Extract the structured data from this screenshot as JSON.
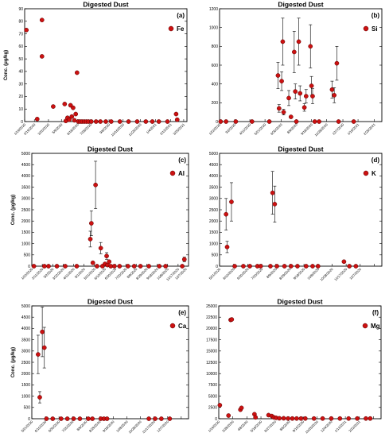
{
  "figure": {
    "ylabel": "Conc. (μg/kg)"
  },
  "chart_data": [
    {
      "type": "scatter",
      "title": "Digested Dust",
      "panel_label": "(a)",
      "series": [
        {
          "name": "Fe",
          "color": "#cc1111"
        }
      ],
      "ylabel": "Conc. (μg/kg)",
      "ylim": [
        0,
        90
      ],
      "yticks": [
        0,
        10,
        20,
        30,
        40,
        50,
        60,
        70,
        80,
        90
      ],
      "xlim": [
        0,
        750
      ],
      "xtick_pos": [
        0,
        45,
        110,
        170,
        245,
        305,
        390,
        455,
        535,
        605,
        675,
        735
      ],
      "xtick_labels": [
        "1/19/2020",
        "2/19/2020",
        "3/20/2020",
        "5/9/2020",
        "6/18/2020",
        "7/28/2020",
        "9/6/2020",
        "10/16/2020",
        "11/25/2020",
        "1/4/2021",
        "2/13/2021",
        "3/25/2021"
      ],
      "points": [
        [
          8,
          73,
          0
        ],
        [
          58,
          2,
          0
        ],
        [
          80,
          81,
          0
        ],
        [
          80,
          52,
          0
        ],
        [
          132,
          12,
          0
        ],
        [
          185,
          14,
          0
        ],
        [
          190,
          0.5,
          0
        ],
        [
          198,
          3,
          0
        ],
        [
          206,
          1.5,
          0
        ],
        [
          212,
          13,
          0
        ],
        [
          218,
          4,
          0
        ],
        [
          224,
          11,
          0
        ],
        [
          230,
          1,
          0
        ],
        [
          236,
          6,
          0
        ],
        [
          242,
          39,
          0
        ],
        [
          248,
          0,
          0
        ],
        [
          256,
          0,
          0
        ],
        [
          265,
          0,
          0
        ],
        [
          275,
          0,
          0
        ],
        [
          285,
          0,
          0
        ],
        [
          295,
          0,
          0
        ],
        [
          308,
          0,
          0
        ],
        [
          330,
          0,
          0
        ],
        [
          350,
          0,
          0
        ],
        [
          375,
          0,
          0
        ],
        [
          400,
          0,
          0
        ],
        [
          440,
          0,
          0
        ],
        [
          480,
          0,
          0
        ],
        [
          520,
          0,
          0
        ],
        [
          560,
          0,
          0
        ],
        [
          590,
          0,
          0
        ],
        [
          620,
          0,
          0
        ],
        [
          660,
          0,
          0
        ],
        [
          700,
          6,
          0
        ],
        [
          705,
          1.5,
          0
        ]
      ]
    },
    {
      "type": "scatter",
      "title": "Digested Dust",
      "panel_label": "(b)",
      "series": [
        {
          "name": "Si",
          "color": "#cc1111"
        }
      ],
      "ylabel": "",
      "ylim": [
        0,
        1200
      ],
      "yticks": [
        0,
        200,
        400,
        600,
        800,
        1000,
        1200
      ],
      "xlim": [
        0,
        750
      ],
      "xtick_pos": [
        0,
        70,
        140,
        210,
        285,
        355,
        425,
        495,
        570,
        640,
        715
      ],
      "xtick_labels": [
        "1/22/2020",
        "3/2/2020",
        "4/11/2020",
        "5/21/2020",
        "6/30/2020",
        "8/9/2020",
        "9/18/2020",
        "10/28/2020",
        "12/7/2020",
        "1/16/2021",
        "2/25/2021"
      ],
      "points": [
        [
          5,
          0,
          0
        ],
        [
          30,
          0,
          0
        ],
        [
          75,
          0,
          0
        ],
        [
          150,
          0,
          0
        ],
        [
          230,
          0,
          0
        ],
        [
          270,
          490,
          140
        ],
        [
          275,
          140,
          40
        ],
        [
          287,
          430,
          100
        ],
        [
          292,
          850,
          250
        ],
        [
          296,
          100,
          30
        ],
        [
          320,
          250,
          80
        ],
        [
          330,
          50,
          0
        ],
        [
          345,
          740,
          220
        ],
        [
          350,
          320,
          80
        ],
        [
          355,
          0,
          0
        ],
        [
          366,
          850,
          250
        ],
        [
          372,
          300,
          80
        ],
        [
          392,
          150,
          40
        ],
        [
          400,
          270,
          70
        ],
        [
          420,
          800,
          230
        ],
        [
          425,
          380,
          100
        ],
        [
          430,
          270,
          80
        ],
        [
          440,
          0,
          0
        ],
        [
          460,
          0,
          0
        ],
        [
          520,
          340,
          90
        ],
        [
          530,
          280,
          80
        ],
        [
          542,
          620,
          180
        ],
        [
          550,
          0,
          0
        ],
        [
          620,
          0,
          0
        ]
      ]
    },
    {
      "type": "scatter",
      "title": "Digested Dust",
      "panel_label": "(c)",
      "series": [
        {
          "name": "Al",
          "color": "#cc1111"
        }
      ],
      "ylabel": "Conc. (μg/kg)",
      "ylim": [
        0,
        5000
      ],
      "yticks": [
        0,
        500,
        1000,
        1500,
        2000,
        2500,
        3000,
        3500,
        4000,
        4500,
        5000
      ],
      "xlim": [
        0,
        750
      ],
      "xtick_pos": [
        0,
        50,
        100,
        150,
        200,
        250,
        300,
        350,
        400,
        450,
        500,
        550,
        600,
        650,
        700
      ],
      "xtick_labels": [
        "1/22/2020",
        "2/11/2020",
        "3/2/2020",
        "3/22/2020",
        "4/11/2020",
        "5/1/2020",
        "5/21/2020",
        "6/10/2020",
        "6/30/2020",
        "7/20/2020",
        "8/9/2020",
        "8/29/2020",
        "9/18/2020",
        "10/8/2020",
        "11/17/2020"
      ],
      "xtick_extra": [
        "12/7/2020"
      ],
      "points": [
        [
          10,
          0,
          0
        ],
        [
          60,
          0,
          0
        ],
        [
          80,
          0,
          0
        ],
        [
          120,
          0,
          0
        ],
        [
          160,
          0,
          0
        ],
        [
          215,
          0,
          0
        ],
        [
          280,
          1200,
          350
        ],
        [
          285,
          1900,
          550
        ],
        [
          292,
          150,
          0
        ],
        [
          305,
          3600,
          1050
        ],
        [
          312,
          0,
          0
        ],
        [
          330,
          800,
          250
        ],
        [
          338,
          0,
          0
        ],
        [
          350,
          100,
          0
        ],
        [
          358,
          450,
          150
        ],
        [
          362,
          50,
          0
        ],
        [
          370,
          200,
          0
        ],
        [
          378,
          0,
          0
        ],
        [
          395,
          0,
          0
        ],
        [
          420,
          0,
          0
        ],
        [
          460,
          0,
          0
        ],
        [
          490,
          0,
          0
        ],
        [
          520,
          0,
          0
        ],
        [
          560,
          0,
          0
        ],
        [
          610,
          0,
          0
        ],
        [
          640,
          0,
          0
        ],
        [
          720,
          0,
          0
        ],
        [
          730,
          300,
          100
        ]
      ]
    },
    {
      "type": "scatter",
      "title": "Digested Dust",
      "panel_label": "(d)",
      "series": [
        {
          "name": "K",
          "color": "#cc1111"
        }
      ],
      "ylabel": "",
      "ylim": [
        0,
        5000
      ],
      "yticks": [
        0,
        500,
        1000,
        1500,
        2000,
        2500,
        3000,
        3500,
        4000,
        4500,
        5000
      ],
      "xlim": [
        0,
        750
      ],
      "xtick_pos": [
        0,
        65,
        130,
        195,
        260,
        325,
        390,
        455,
        520,
        585,
        650,
        715
      ],
      "xtick_labels": [
        "5/21/2020",
        "6/10/2020",
        "6/30/2020",
        "7/20/2020",
        "8/9/2020",
        "8/29/2020",
        "9/18/2020",
        "10/8/2020",
        "10/28/2020",
        "11/17/2020",
        "12/7/2020",
        ""
      ],
      "points": [
        [
          30,
          2300,
          700
        ],
        [
          35,
          850,
          250
        ],
        [
          55,
          2850,
          850
        ],
        [
          70,
          0,
          0
        ],
        [
          110,
          0,
          0
        ],
        [
          140,
          0,
          0
        ],
        [
          175,
          0,
          0
        ],
        [
          190,
          0,
          0
        ],
        [
          235,
          0,
          0
        ],
        [
          245,
          3250,
          950
        ],
        [
          255,
          2750,
          800
        ],
        [
          265,
          0,
          0
        ],
        [
          300,
          0,
          0
        ],
        [
          330,
          0,
          0
        ],
        [
          360,
          0,
          0
        ],
        [
          400,
          0,
          0
        ],
        [
          430,
          0,
          0
        ],
        [
          455,
          0,
          0
        ],
        [
          575,
          200,
          0
        ],
        [
          600,
          0,
          0
        ],
        [
          630,
          0,
          0
        ]
      ]
    },
    {
      "type": "scatter",
      "title": "Digested Dust",
      "panel_label": "(e)",
      "series": [
        {
          "name": "Ca",
          "color": "#cc1111"
        }
      ],
      "ylabel": "Conc. (μg/kg)",
      "ylim": [
        0,
        5000
      ],
      "yticks": [
        0,
        500,
        1000,
        1500,
        2000,
        2500,
        3000,
        3500,
        4000,
        4500,
        5000
      ],
      "xlim": [
        0,
        750
      ],
      "xtick_pos": [
        0,
        65,
        130,
        195,
        260,
        325,
        390,
        455,
        520,
        585,
        650,
        715
      ],
      "xtick_labels": [
        "5/21/2020",
        "6/10/2020",
        "6/30/2020",
        "7/20/2020",
        "8/9/2020",
        "8/29/2020",
        "9/18/2020",
        "10/8/2020",
        "10/28/2020",
        "11/17/2020",
        "12/7/2020",
        ""
      ],
      "points": [
        [
          30,
          2850,
          850
        ],
        [
          38,
          950,
          250
        ],
        [
          50,
          3850,
          1100
        ],
        [
          60,
          3150,
          900
        ],
        [
          70,
          0,
          0
        ],
        [
          100,
          0,
          0
        ],
        [
          140,
          0,
          0
        ],
        [
          170,
          0,
          0
        ],
        [
          200,
          0,
          0
        ],
        [
          230,
          0,
          0
        ],
        [
          270,
          0,
          0
        ],
        [
          290,
          0,
          0
        ],
        [
          330,
          0,
          0
        ],
        [
          345,
          0,
          0
        ],
        [
          360,
          0,
          0
        ],
        [
          560,
          0,
          0
        ],
        [
          590,
          0,
          0
        ],
        [
          620,
          0,
          0
        ],
        [
          660,
          0,
          0
        ]
      ]
    },
    {
      "type": "scatter",
      "title": "Digested Dust",
      "panel_label": "(f)",
      "series": [
        {
          "name": "Mg",
          "color": "#cc1111"
        }
      ],
      "ylabel": "",
      "ylim": [
        0,
        25000
      ],
      "yticks": [
        0,
        2500,
        5000,
        7500,
        10000,
        12500,
        15000,
        17500,
        20000,
        22500,
        25000
      ],
      "xlim": [
        0,
        750
      ],
      "xtick_pos": [
        0,
        65,
        130,
        195,
        260,
        325,
        390,
        455,
        520,
        585,
        650,
        715
      ],
      "xtick_labels": [
        "1/19/2020",
        "2/28/2020",
        "4/8/2020",
        "5/18/2020",
        "6/27/2020",
        "8/6/2020",
        "9/15/2020",
        "10/25/2020",
        "12/4/2020",
        "1/13/2021",
        "2/22/2021",
        ""
      ],
      "points": [
        [
          5,
          3000,
          0
        ],
        [
          45,
          700,
          0
        ],
        [
          55,
          21900,
          0
        ],
        [
          60,
          22000,
          0
        ],
        [
          100,
          2000,
          0
        ],
        [
          105,
          2400,
          0
        ],
        [
          165,
          1000,
          0
        ],
        [
          170,
          300,
          0
        ],
        [
          230,
          800,
          0
        ],
        [
          245,
          600,
          0
        ],
        [
          255,
          300,
          0
        ],
        [
          265,
          200,
          0
        ],
        [
          280,
          100,
          0
        ],
        [
          300,
          100,
          0
        ],
        [
          320,
          50,
          0
        ],
        [
          340,
          50,
          0
        ],
        [
          360,
          50,
          0
        ],
        [
          380,
          50,
          0
        ],
        [
          400,
          50,
          0
        ],
        [
          440,
          50,
          0
        ],
        [
          480,
          50,
          0
        ],
        [
          520,
          50,
          0
        ],
        [
          560,
          50,
          0
        ],
        [
          600,
          50,
          0
        ],
        [
          640,
          50,
          0
        ],
        [
          680,
          50,
          0
        ],
        [
          700,
          50,
          0
        ]
      ]
    }
  ]
}
